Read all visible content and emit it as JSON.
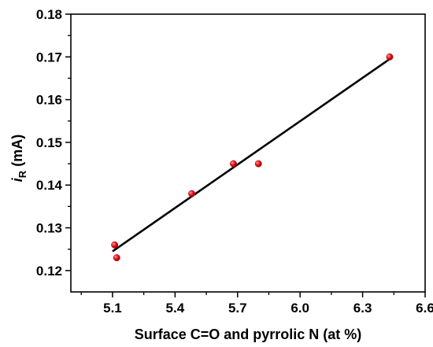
{
  "chart_data": {
    "type": "scatter",
    "xlabel": "Surface C=O and pyrrolic N (at %)",
    "ylabel": {
      "symbol": "i",
      "subscript": "R",
      "unit": " (mA)"
    },
    "xlim": [
      4.9,
      6.6
    ],
    "ylim": [
      0.115,
      0.18
    ],
    "xticks": [
      "5.1",
      "5.4",
      "5.7",
      "6.0",
      "6.3",
      "6.6"
    ],
    "yticks": [
      "0.12",
      "0.13",
      "0.14",
      "0.15",
      "0.16",
      "0.17",
      "0.18"
    ],
    "grid": false,
    "points": [
      {
        "x": 5.11,
        "y": 0.126
      },
      {
        "x": 5.12,
        "y": 0.123
      },
      {
        "x": 5.48,
        "y": 0.138
      },
      {
        "x": 5.68,
        "y": 0.145
      },
      {
        "x": 5.8,
        "y": 0.145
      },
      {
        "x": 6.43,
        "y": 0.17
      }
    ],
    "fit_line": {
      "x": [
        5.1,
        6.43
      ],
      "y": [
        0.1245,
        0.1695
      ]
    },
    "colors": {
      "marker": "#e8101a",
      "marker_highlight": "#ff9a9a",
      "line": "#000000",
      "axes": "#000000"
    }
  }
}
